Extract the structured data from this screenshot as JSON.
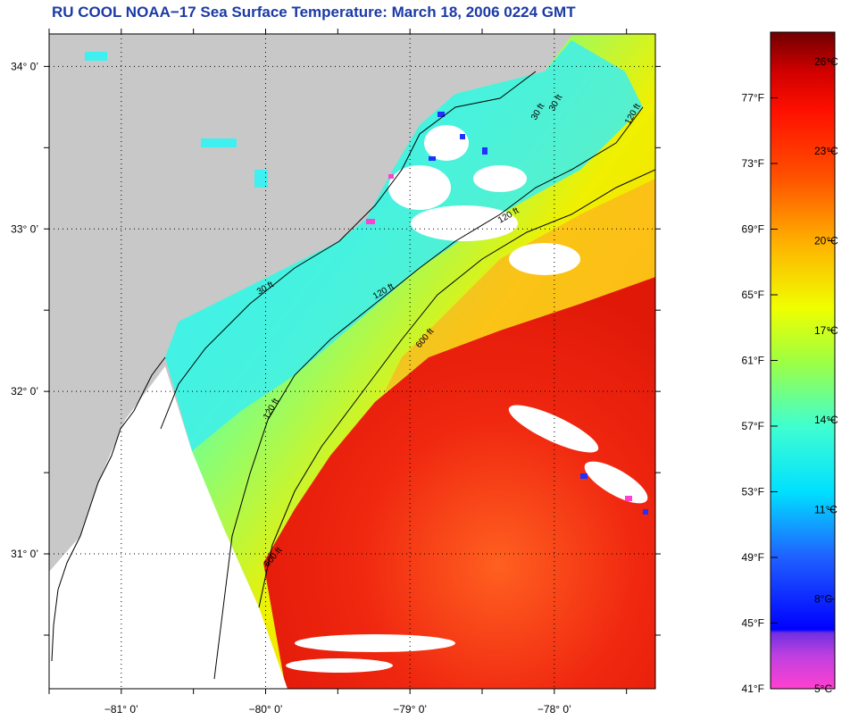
{
  "title": "RU COOL  NOAA−17  Sea Surface Temperature:  March 18, 2006 0224 GMT",
  "map": {
    "lat_labels": [
      {
        "text": "34° 0’",
        "lat": 34.0
      },
      {
        "text": "33° 0’",
        "lat": 33.0
      },
      {
        "text": "32° 0’",
        "lat": 32.0
      },
      {
        "text": "31° 0’",
        "lat": 31.0
      }
    ],
    "lon_labels": [
      {
        "text": "−81° 0’",
        "lon": -81.0
      },
      {
        "text": "−80° 0’",
        "lon": -80.0
      },
      {
        "text": "−79° 0’",
        "lon": -79.0
      },
      {
        "text": "−78° 0’",
        "lon": -78.0
      }
    ],
    "lat_range": [
      30.17,
      34.2
    ],
    "lon_range": [
      -81.5,
      -77.3
    ],
    "isobath_labels": [
      "30 ft",
      "120 ft",
      "600 ft"
    ],
    "colors": {
      "land": "#c8c8c8",
      "no_data": "#ffffff",
      "gulf_stream": "#f03010"
    }
  },
  "colorbar": {
    "fahrenheit_labels": [
      "41°F",
      "45°F",
      "49°F",
      "53°F",
      "57°F",
      "61°F",
      "65°F",
      "69°F",
      "73°F",
      "77°F"
    ],
    "celsius_labels": [
      "5°C",
      "8°C",
      "11°C",
      "14°C",
      "17°C",
      "20°C",
      "23°C",
      "26°C"
    ],
    "gradient_stops": [
      {
        "value": 0.0,
        "color": "#ff40d0"
      },
      {
        "value": 0.05,
        "color": "#c040e0"
      },
      {
        "value": 0.085,
        "color": "#7030e0"
      },
      {
        "value": 0.09,
        "color": "#0000ff"
      },
      {
        "value": 0.2,
        "color": "#2060ff"
      },
      {
        "value": 0.3,
        "color": "#00e0ff"
      },
      {
        "value": 0.4,
        "color": "#40ffd0"
      },
      {
        "value": 0.5,
        "color": "#a0ff40"
      },
      {
        "value": 0.58,
        "color": "#f0ff00"
      },
      {
        "value": 0.68,
        "color": "#ffb000"
      },
      {
        "value": 0.78,
        "color": "#ff5000"
      },
      {
        "value": 0.88,
        "color": "#ff1000"
      },
      {
        "value": 0.94,
        "color": "#d00000"
      },
      {
        "value": 1.0,
        "color": "#700000"
      }
    ]
  }
}
